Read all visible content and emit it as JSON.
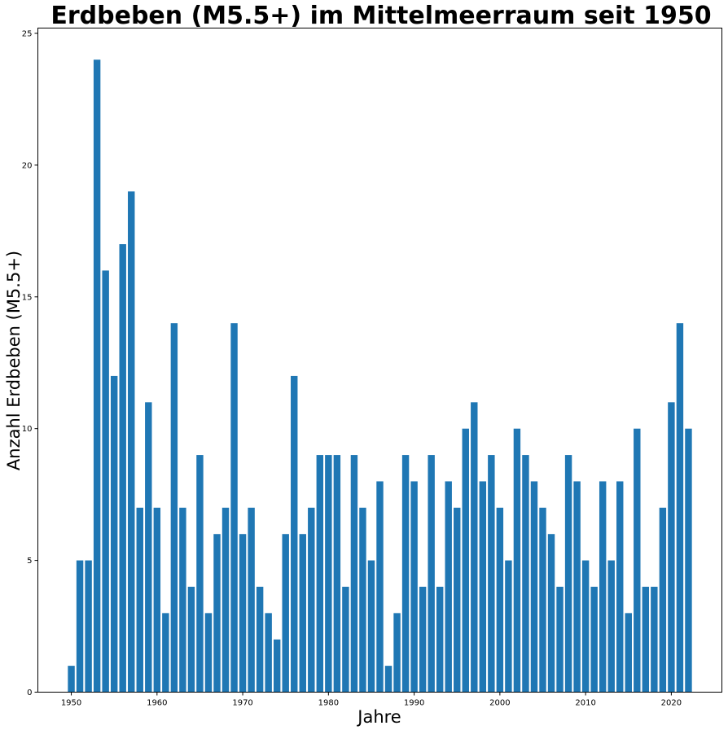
{
  "chart_data": {
    "type": "bar",
    "title": "Erdbeben (M5.5+) im Mittelmeerraum seit 1950",
    "xlabel": "Jahre",
    "ylabel": "Anzahl Erdbeben (M5.5+)",
    "x": [
      1950,
      1951,
      1952,
      1953,
      1954,
      1955,
      1956,
      1957,
      1958,
      1959,
      1960,
      1961,
      1962,
      1963,
      1964,
      1965,
      1966,
      1967,
      1968,
      1969,
      1970,
      1971,
      1972,
      1973,
      1974,
      1975,
      1976,
      1977,
      1978,
      1979,
      1980,
      1981,
      1982,
      1983,
      1984,
      1985,
      1986,
      1987,
      1988,
      1989,
      1990,
      1991,
      1992,
      1993,
      1994,
      1995,
      1996,
      1997,
      1998,
      1999,
      2000,
      2001,
      2002,
      2003,
      2004,
      2005,
      2006,
      2007,
      2008,
      2009,
      2010,
      2011,
      2012,
      2013,
      2014,
      2015,
      2016,
      2017,
      2018,
      2019,
      2020,
      2021,
      2022
    ],
    "values": [
      1,
      5,
      5,
      24,
      16,
      12,
      17,
      19,
      7,
      11,
      7,
      3,
      14,
      7,
      4,
      9,
      3,
      6,
      7,
      14,
      6,
      7,
      4,
      3,
      2,
      6,
      12,
      6,
      7,
      9,
      9,
      9,
      4,
      9,
      7,
      5,
      8,
      1,
      3,
      9,
      8,
      4,
      9,
      4,
      8,
      7,
      10,
      11,
      8,
      9,
      7,
      5,
      10,
      9,
      8,
      7,
      6,
      4,
      9,
      8,
      5,
      4,
      8,
      5,
      8,
      3,
      10,
      4,
      4,
      7,
      11,
      14,
      10
    ],
    "xlim": [
      1946.1,
      2025.9
    ],
    "ylim": [
      0,
      25.2
    ],
    "xticks": [
      "1950",
      "1960",
      "1970",
      "1980",
      "1990",
      "2000",
      "2010",
      "2020"
    ],
    "yticks": [
      "0",
      "5",
      "10",
      "15",
      "20",
      "25"
    ],
    "grid": false,
    "colors": {
      "bar": "#1f77b4"
    }
  }
}
